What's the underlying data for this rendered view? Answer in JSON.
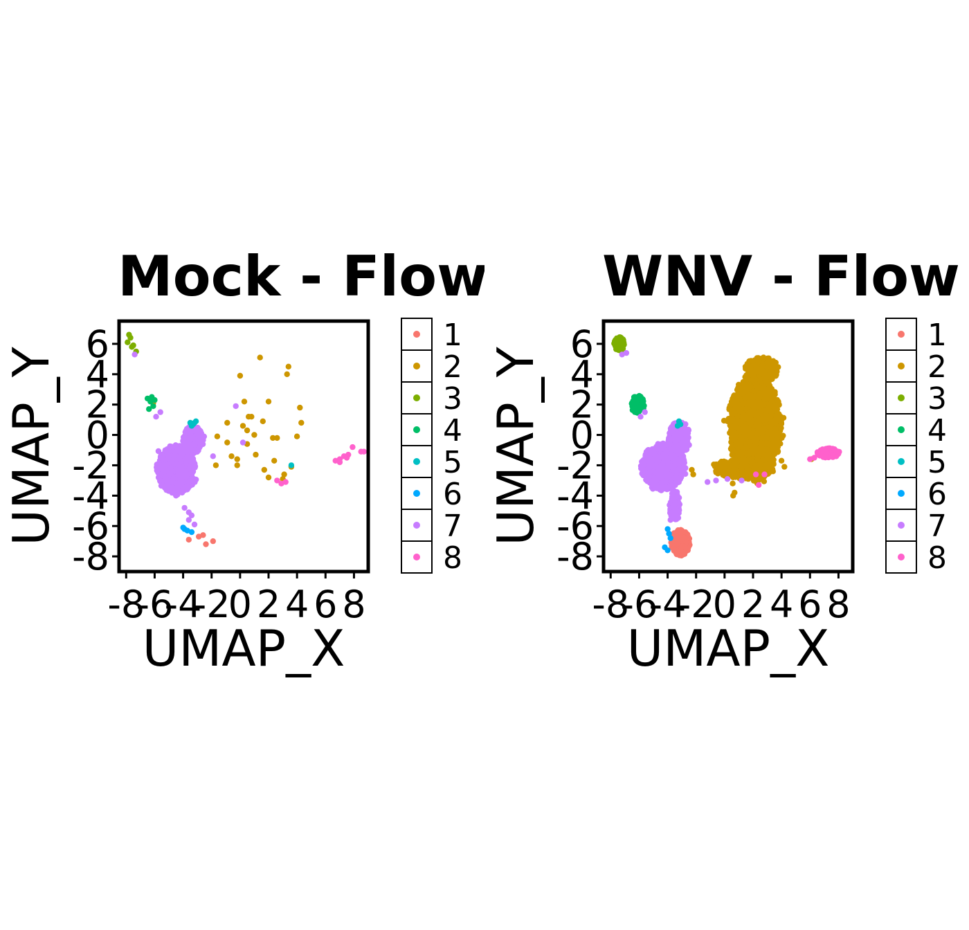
{
  "chart_data": [
    {
      "type": "scatter",
      "title": "Mock - Flow",
      "xlabel": "UMAP_X",
      "ylabel": "UMAP_Y",
      "xlim": [
        -8.5,
        9.0
      ],
      "ylim": [
        -9.0,
        7.5
      ],
      "xticks": [
        -8,
        -6,
        -4,
        -2,
        0,
        2,
        4,
        6,
        8
      ],
      "yticks": [
        6,
        4,
        2,
        0,
        -2,
        -4,
        -6,
        -8
      ],
      "grid": false,
      "legend": {
        "placement": "right",
        "title": "",
        "entries": [
          "1",
          "2",
          "3",
          "4",
          "5",
          "6",
          "7",
          "8"
        ]
      },
      "clusters": [
        {
          "name": "1",
          "color": "#F8766D",
          "points": [
            [
              -3.6,
              -6.9
            ],
            [
              -2.9,
              -6.7
            ],
            [
              -2.6,
              -6.6
            ],
            [
              -2.4,
              -7.2
            ],
            [
              -1.9,
              -7.0
            ]
          ]
        },
        {
          "name": "2",
          "color": "#CD9600",
          "points": [
            [
              -6.1,
              2.1
            ],
            [
              -1.6,
              -0.1
            ],
            [
              -1.7,
              -2.0
            ],
            [
              -0.9,
              0.8
            ],
            [
              -0.9,
              -0.5
            ],
            [
              -0.6,
              -1.4
            ],
            [
              -0.2,
              -1.6
            ],
            [
              0.0,
              3.9
            ],
            [
              0.3,
              2.2
            ],
            [
              0.2,
              0.6
            ],
            [
              0.5,
              0.3
            ],
            [
              0.5,
              -0.6
            ],
            [
              0.6,
              1.2
            ],
            [
              0.8,
              1.2
            ],
            [
              1.0,
              0.0
            ],
            [
              1.1,
              -1.3
            ],
            [
              1.4,
              5.1
            ],
            [
              1.6,
              0.9
            ],
            [
              1.7,
              -2.3
            ],
            [
              2.0,
              2.2
            ],
            [
              2.0,
              -2.8
            ],
            [
              2.3,
              -0.2
            ],
            [
              2.6,
              -0.2
            ],
            [
              3.0,
              -2.9
            ],
            [
              3.1,
              -2.6
            ],
            [
              3.3,
              4.0
            ],
            [
              3.4,
              4.5
            ],
            [
              3.6,
              -2.1
            ],
            [
              4.0,
              -0.1
            ],
            [
              4.2,
              1.8
            ],
            [
              4.3,
              0.8
            ],
            [
              -0.2,
              -2.0
            ],
            [
              2.4,
              -1.7
            ]
          ]
        },
        {
          "name": "3",
          "color": "#7CAE00",
          "points": [
            [
              -7.7,
              6.4
            ],
            [
              -7.9,
              6.1
            ],
            [
              -7.5,
              5.9
            ],
            [
              -7.3,
              5.5
            ],
            [
              -7.8,
              6.6
            ],
            [
              -7.6,
              5.8
            ]
          ]
        },
        {
          "name": "4",
          "color": "#00BE67",
          "points": [
            [
              -6.5,
              2.4
            ],
            [
              -6.3,
              2.2
            ],
            [
              -6.1,
              1.9
            ],
            [
              -6.4,
              1.7
            ],
            [
              -6.0,
              2.3
            ],
            [
              -6.2,
              2.5
            ]
          ]
        },
        {
          "name": "5",
          "color": "#00BFC4",
          "points": [
            [
              -3.5,
              0.8
            ],
            [
              -3.3,
              0.7
            ],
            [
              -3.1,
              0.9
            ],
            [
              -3.4,
              0.6
            ],
            [
              -3.2,
              0.8
            ],
            [
              3.6,
              -2.0
            ]
          ]
        },
        {
          "name": "6",
          "color": "#00A9FF",
          "points": [
            [
              -4.0,
              -6.1
            ],
            [
              -3.9,
              -6.2
            ],
            [
              -3.7,
              -6.3
            ],
            [
              -3.4,
              -6.4
            ]
          ]
        },
        {
          "name": "7",
          "color": "#C77CFF",
          "points": [
            [
              -7.4,
              5.3
            ],
            [
              -5.6,
              1.5
            ],
            [
              -5.9,
              1.2
            ],
            [
              -1.9,
              -1.4
            ],
            [
              -0.3,
              1.9
            ],
            [
              0.2,
              -0.5
            ],
            [
              -4.5,
              -4.0
            ],
            [
              -5.3,
              -3.4
            ],
            [
              -3.9,
              -4.8
            ],
            [
              -3.6,
              -5.1
            ],
            [
              -3.6,
              -5.6
            ],
            [
              -3.2,
              -5.9
            ],
            [
              -3.4,
              -5.3
            ]
          ]
        },
        {
          "name": "8",
          "color": "#FF61CC",
          "points": [
            [
              2.6,
              -3.0
            ],
            [
              2.9,
              -3.2
            ],
            [
              3.2,
              -3.1
            ],
            [
              6.7,
              -1.7
            ],
            [
              7.0,
              -1.6
            ],
            [
              7.3,
              -1.4
            ],
            [
              7.6,
              -1.3
            ],
            [
              7.9,
              -0.8
            ],
            [
              8.5,
              -1.1
            ],
            [
              8.7,
              -1.1
            ],
            [
              7.0,
              -1.8
            ],
            [
              7.5,
              -1.5
            ]
          ]
        }
      ],
      "blobs": [
        {
          "name": "7",
          "color": "#C77CFF",
          "center": [
            -4.5,
            -2.3
          ],
          "spread": [
            1.05,
            1.25
          ],
          "count": 1400
        },
        {
          "name": "7",
          "color": "#C77CFF",
          "center": [
            -3.3,
            -0.3
          ],
          "spread": [
            0.55,
            0.75
          ],
          "count": 500
        }
      ]
    },
    {
      "type": "scatter",
      "title": "WNV - Flow",
      "xlabel": "UMAP_X",
      "ylabel": "UMAP_Y",
      "xlim": [
        -8.5,
        9.0
      ],
      "ylim": [
        -9.0,
        7.5
      ],
      "xticks": [
        -8,
        -6,
        -4,
        -2,
        0,
        2,
        4,
        6,
        8
      ],
      "yticks": [
        6,
        4,
        2,
        0,
        -2,
        -4,
        -6,
        -8
      ],
      "grid": false,
      "legend": {
        "placement": "right",
        "title": "",
        "entries": [
          "1",
          "2",
          "3",
          "4",
          "5",
          "6",
          "7",
          "8"
        ]
      },
      "clusters": [
        {
          "name": "2",
          "color": "#CD9600",
          "points": [
            [
              -2.3,
              -2.3
            ],
            [
              -2.2,
              -2.6
            ],
            [
              0.6,
              -4.0
            ],
            [
              0.7,
              -3.8
            ],
            [
              3.4,
              -2.4
            ],
            [
              4.2,
              -2.1
            ],
            [
              4.0,
              -1.7
            ],
            [
              6.1,
              -1.6
            ]
          ]
        },
        {
          "name": "5",
          "color": "#00BFC4",
          "points": [
            [
              -3.2,
              0.9
            ],
            [
              -3.1,
              0.7
            ],
            [
              -3.3,
              0.6
            ]
          ]
        },
        {
          "name": "6",
          "color": "#00A9FF",
          "points": [
            [
              -4.0,
              -6.2
            ],
            [
              -3.9,
              -6.5
            ],
            [
              -3.8,
              -6.8
            ],
            [
              -4.2,
              -7.4
            ],
            [
              -4.0,
              -7.6
            ]
          ]
        },
        {
          "name": "7",
          "color": "#C77CFF",
          "points": [
            [
              -5.6,
              1.5
            ],
            [
              -5.9,
              1.2
            ],
            [
              -7.2,
              5.3
            ],
            [
              -6.9,
              5.4
            ],
            [
              -1.2,
              -3.1
            ],
            [
              -0.6,
              -3.0
            ],
            [
              0.2,
              -2.9
            ],
            [
              1.2,
              -3.0
            ],
            [
              -3.8,
              -5.6
            ]
          ]
        },
        {
          "name": "8",
          "color": "#FF61CC",
          "points": [
            [
              2.2,
              -2.6
            ],
            [
              2.8,
              -2.6
            ],
            [
              6.0,
              -1.6
            ],
            [
              6.3,
              -1.5
            ],
            [
              2.4,
              -3.3
            ]
          ]
        }
      ],
      "blobs": [
        {
          "name": "2",
          "color": "#CD9600",
          "center": [
            2.1,
            0.5
          ],
          "spread": [
            1.45,
            2.7
          ],
          "count": 2600
        },
        {
          "name": "2",
          "color": "#CD9600",
          "center": [
            1.3,
            -2.2
          ],
          "spread": [
            1.6,
            0.5
          ],
          "count": 600
        },
        {
          "name": "2",
          "color": "#CD9600",
          "center": [
            2.6,
            4.3
          ],
          "spread": [
            0.9,
            0.65
          ],
          "count": 400
        },
        {
          "name": "7",
          "color": "#C77CFF",
          "center": [
            -4.3,
            -2.1
          ],
          "spread": [
            1.2,
            1.2
          ],
          "count": 1300
        },
        {
          "name": "7",
          "color": "#C77CFF",
          "center": [
            -3.2,
            -0.2
          ],
          "spread": [
            0.6,
            0.8
          ],
          "count": 500
        },
        {
          "name": "7",
          "color": "#C77CFF",
          "center": [
            -3.5,
            -4.7
          ],
          "spread": [
            0.28,
            0.8
          ],
          "count": 220
        },
        {
          "name": "1",
          "color": "#F8766D",
          "center": [
            -3.1,
            -7.1
          ],
          "spread": [
            0.5,
            0.65
          ],
          "count": 1100
        },
        {
          "name": "3",
          "color": "#7CAE00",
          "center": [
            -7.4,
            6.0
          ],
          "spread": [
            0.28,
            0.35
          ],
          "count": 260
        },
        {
          "name": "4",
          "color": "#00BE67",
          "center": [
            -6.1,
            2.0
          ],
          "spread": [
            0.35,
            0.45
          ],
          "count": 220
        },
        {
          "name": "8",
          "color": "#FF61CC",
          "center": [
            7.3,
            -1.2
          ],
          "spread": [
            0.6,
            0.25
          ],
          "count": 240
        }
      ]
    }
  ]
}
